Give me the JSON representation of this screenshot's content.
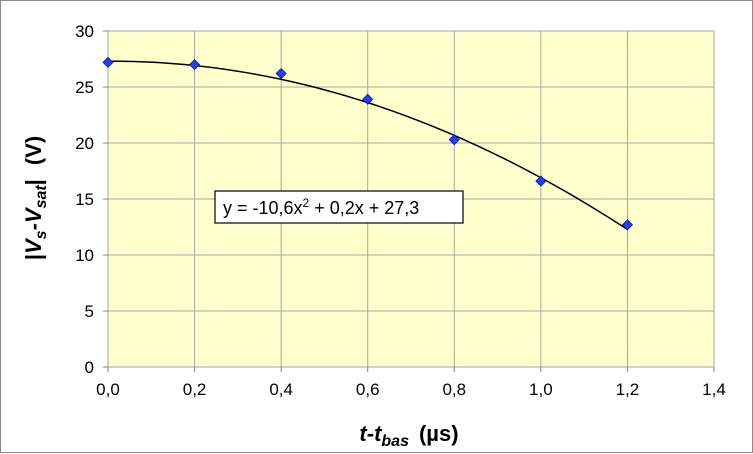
{
  "chart_data": {
    "type": "scatter",
    "x_axis": {
      "title_main": "t-t",
      "title_sub": "bas",
      "title_unit": "(µs)",
      "range": [
        0,
        1.4
      ],
      "ticks": [
        0,
        0.2,
        0.4,
        0.6,
        0.8,
        1.0,
        1.2,
        1.4
      ],
      "tick_labels": [
        "0,0",
        "0,2",
        "0,4",
        "0,6",
        "0,8",
        "1,0",
        "1,2",
        "1,4"
      ]
    },
    "y_axis": {
      "title_bar_left": "|",
      "title_v1": "V",
      "title_sub1": "s",
      "title_dash": "-V",
      "title_sub2": "sat",
      "title_bar_right": "|",
      "title_unit": "(V)",
      "range": [
        0,
        30
      ],
      "ticks": [
        0,
        5,
        10,
        15,
        20,
        25,
        30
      ],
      "tick_labels": [
        "0",
        "5",
        "10",
        "15",
        "20",
        "25",
        "30"
      ]
    },
    "series": [
      {
        "marker": "diamond",
        "color": "#1f3fff",
        "x": [
          0.0,
          0.2,
          0.4,
          0.6,
          0.8,
          1.0,
          1.2
        ],
        "y": [
          27.2,
          27.0,
          26.2,
          23.9,
          20.3,
          16.6,
          12.7
        ]
      }
    ],
    "trendline": {
      "type": "polynomial",
      "coefficients": [
        -10.6,
        0.2,
        27.3
      ],
      "x_range": [
        0,
        1.2
      ],
      "equation_prefix": "y = -10,6x",
      "equation_exp": "2",
      "equation_suffix": " + 0,2x + 27,3"
    },
    "grid": true,
    "plot_background": "#ffffcc",
    "grid_color": "#a6a6a6"
  }
}
